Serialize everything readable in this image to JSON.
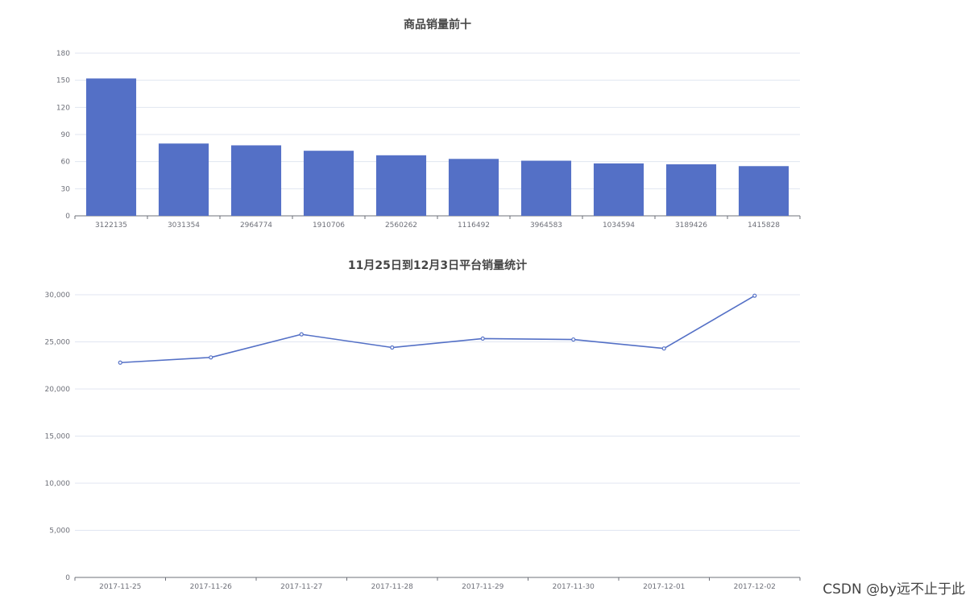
{
  "watermark": "CSDN @by远不止于此",
  "colors": {
    "series": "#5470c6",
    "grid": "#e0e6f1",
    "axis": "#6e7079"
  },
  "chart_data": [
    {
      "type": "bar",
      "title": "商品销量前十",
      "categories": [
        "3122135",
        "3031354",
        "2964774",
        "1910706",
        "2560262",
        "1116492",
        "3964583",
        "1034594",
        "3189426",
        "1415828"
      ],
      "values": [
        152,
        80,
        78,
        72,
        67,
        63,
        61,
        58,
        57,
        55
      ],
      "ylim": [
        0,
        180
      ],
      "yticks": [
        0,
        30,
        60,
        90,
        120,
        150,
        180
      ],
      "ytick_labels": [
        "0",
        "30",
        "60",
        "90",
        "120",
        "150",
        "180"
      ],
      "grid": true
    },
    {
      "type": "line",
      "title": "11月25日到12月3日平台销量统计",
      "categories": [
        "2017-11-25",
        "2017-11-26",
        "2017-11-27",
        "2017-11-28",
        "2017-11-29",
        "2017-11-30",
        "2017-12-01",
        "2017-12-02"
      ],
      "values": [
        22800,
        23350,
        25800,
        24400,
        25350,
        25250,
        24300,
        29900
      ],
      "ylim": [
        0,
        30000
      ],
      "yticks": [
        0,
        5000,
        10000,
        15000,
        20000,
        25000,
        30000
      ],
      "ytick_labels": [
        "0",
        "5,000",
        "10,000",
        "15,000",
        "20,000",
        "25,000",
        "30,000"
      ],
      "grid": true
    }
  ]
}
